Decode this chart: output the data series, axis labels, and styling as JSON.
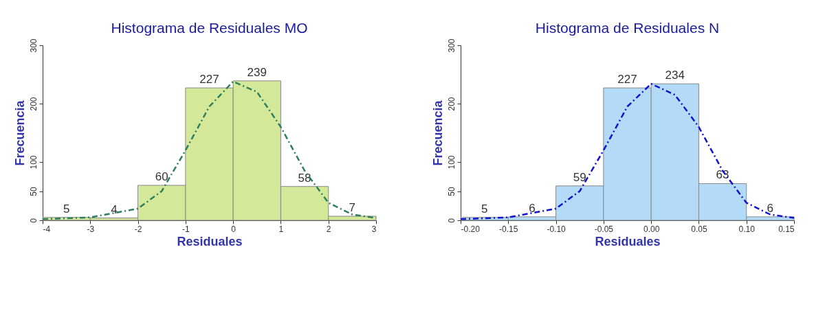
{
  "chart_data": [
    {
      "type": "histogram",
      "title": "Histograma de Residuales MO",
      "xlabel": "Residuales",
      "ylabel": "Frecuencia",
      "bins": [
        -4,
        -3,
        -2,
        -1,
        0,
        1,
        2,
        3
      ],
      "values": [
        5,
        4,
        60,
        227,
        239,
        58,
        7
      ],
      "value_labels": [
        "5",
        "4",
        "60",
        "227",
        "239",
        "58",
        "7"
      ],
      "color": "#d4e89a",
      "xlim": [
        -4,
        3
      ],
      "xticks": [
        -4,
        -3,
        -2,
        -1,
        0,
        1,
        2,
        3
      ],
      "ylim": [
        0,
        300
      ],
      "yticks": [
        0,
        50,
        100,
        200,
        300
      ],
      "series": [
        {
          "type": "line",
          "color": "#2e7d5b",
          "line_style": "dashed",
          "x": [
            -4,
            -3,
            -2,
            -1.5,
            -1,
            -0.5,
            0,
            0.5,
            1,
            1.5,
            2,
            2.5,
            3
          ],
          "values": [
            2,
            5,
            20,
            50,
            120,
            195,
            238,
            220,
            160,
            85,
            30,
            10,
            4
          ]
        }
      ]
    },
    {
      "type": "histogram",
      "title": "Histograma de Residuales N",
      "xlabel": "Residuales",
      "ylabel": "Frecuencia",
      "bins": [
        -0.2,
        -0.15,
        -0.1,
        -0.05,
        0,
        0.05,
        0.1,
        0.15
      ],
      "values": [
        5,
        6,
        59,
        227,
        234,
        63,
        6
      ],
      "value_labels": [
        "5",
        "6",
        "59",
        "227",
        "234",
        "63",
        "6"
      ],
      "color": "#b3dbf7",
      "xlim": [
        -0.2,
        0.15
      ],
      "xticks": [
        {
          "value": -0.2,
          "label": "-0.20"
        },
        {
          "value": -0.15,
          "label": "-0.15"
        },
        {
          "value": -0.1,
          "label": "-0.10"
        },
        {
          "value": -0.05,
          "label": "-0.05"
        },
        {
          "value": 0,
          "label": "0.00"
        },
        {
          "value": 0.05,
          "label": "0.05"
        },
        {
          "value": 0.1,
          "label": "0.10"
        },
        {
          "value": 0.15,
          "label": "0.15"
        }
      ],
      "ylim": [
        0,
        300
      ],
      "yticks": [
        0,
        50,
        100,
        200,
        300
      ],
      "series": [
        {
          "type": "line",
          "color": "#1010d0",
          "line_style": "dashed",
          "x": [
            -0.2,
            -0.15,
            -0.1,
            -0.075,
            -0.05,
            -0.025,
            0,
            0.025,
            0.05,
            0.075,
            0.1,
            0.125,
            0.15
          ],
          "values": [
            2,
            5,
            20,
            50,
            120,
            195,
            234,
            215,
            160,
            85,
            30,
            10,
            4
          ]
        }
      ]
    }
  ]
}
